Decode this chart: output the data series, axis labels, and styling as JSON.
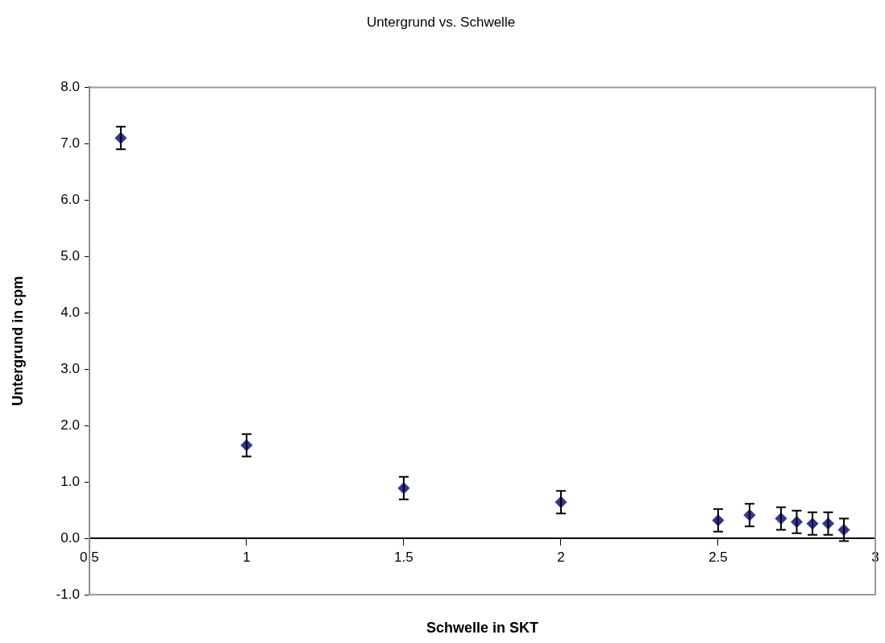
{
  "chart_data": {
    "type": "scatter",
    "title": "Untergrund vs. Schwelle",
    "xlabel": "Schwelle in SKT",
    "ylabel": "Untergrund in cpm",
    "x": [
      0.6,
      1,
      1.5,
      2,
      2.5,
      2.6,
      2.7,
      2.75,
      2.8,
      2.85,
      2.9
    ],
    "series": [
      {
        "color": "#333399",
        "values": [
          7.1,
          1.65,
          0.89,
          0.64,
          0.32,
          0.41,
          0.35,
          0.29,
          0.26,
          0.26,
          0.15
        ],
        "errors": [
          0.2,
          0.2,
          0.2,
          0.2,
          0.2,
          0.2,
          0.2,
          0.2,
          0.2,
          0.2,
          0.2
        ]
      }
    ],
    "xlim": [
      0.5,
      3
    ],
    "xticks": [
      0.5,
      1,
      1.5,
      2,
      2.5,
      3
    ],
    "ylim": [
      -1,
      8
    ],
    "yticks": [
      {
        "value": -1,
        "label": "-1.0"
      },
      {
        "value": 0,
        "label": "0.0"
      },
      {
        "value": 1,
        "label": "1.0"
      },
      {
        "value": 2,
        "label": "2.0"
      },
      {
        "value": 3,
        "label": "3.0"
      },
      {
        "value": 4,
        "label": "4.0"
      },
      {
        "value": 5,
        "label": "5.0"
      },
      {
        "value": 6,
        "label": "6.0"
      },
      {
        "value": 7,
        "label": "7.0"
      },
      {
        "value": 8,
        "label": "8.0"
      }
    ],
    "grid": false,
    "legend": false,
    "marker": "diamond"
  }
}
